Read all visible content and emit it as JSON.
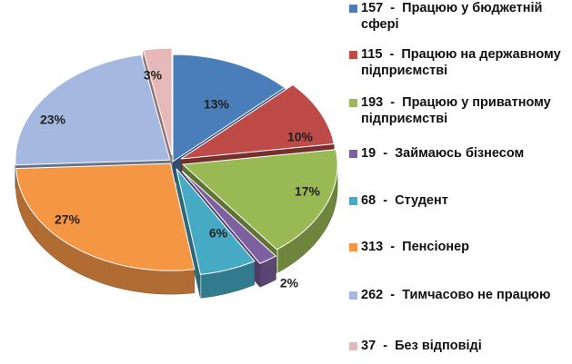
{
  "chart_data": {
    "type": "pie",
    "title": "",
    "style": "3d-exploded",
    "legend_position": "right",
    "slices": [
      {
        "count": "157",
        "label": "Працюю у бюджетній сфері",
        "percent": 13,
        "pct_label": "13%",
        "color": "#4a7ebb"
      },
      {
        "count": "115",
        "label": "Працюю на державному підприємстві",
        "percent": 10,
        "pct_label": "10%",
        "color": "#be4b48"
      },
      {
        "count": "193",
        "label": "Працюю у приватному підприємстві",
        "percent": 17,
        "pct_label": "17%",
        "color": "#98b954"
      },
      {
        "count": "19",
        "label": "Займаюсь бізнесом",
        "percent": 2,
        "pct_label": "2%",
        "color": "#7d60a0"
      },
      {
        "count": "68",
        "label": "Студент",
        "percent": 6,
        "pct_label": "6%",
        "color": "#46aac5"
      },
      {
        "count": "313",
        "label": "Пенсіонер",
        "percent": 27,
        "pct_label": "27%",
        "color": "#f59645"
      },
      {
        "count": "262",
        "label": "Тимчасово не працюю",
        "percent": 23,
        "pct_label": "23%",
        "color": "#a5b8e0"
      },
      {
        "count": "37",
        "label": "Без відповіді",
        "percent": 3,
        "pct_label": "3%",
        "color": "#e6b9b8"
      }
    ],
    "legend_separator": "-"
  }
}
